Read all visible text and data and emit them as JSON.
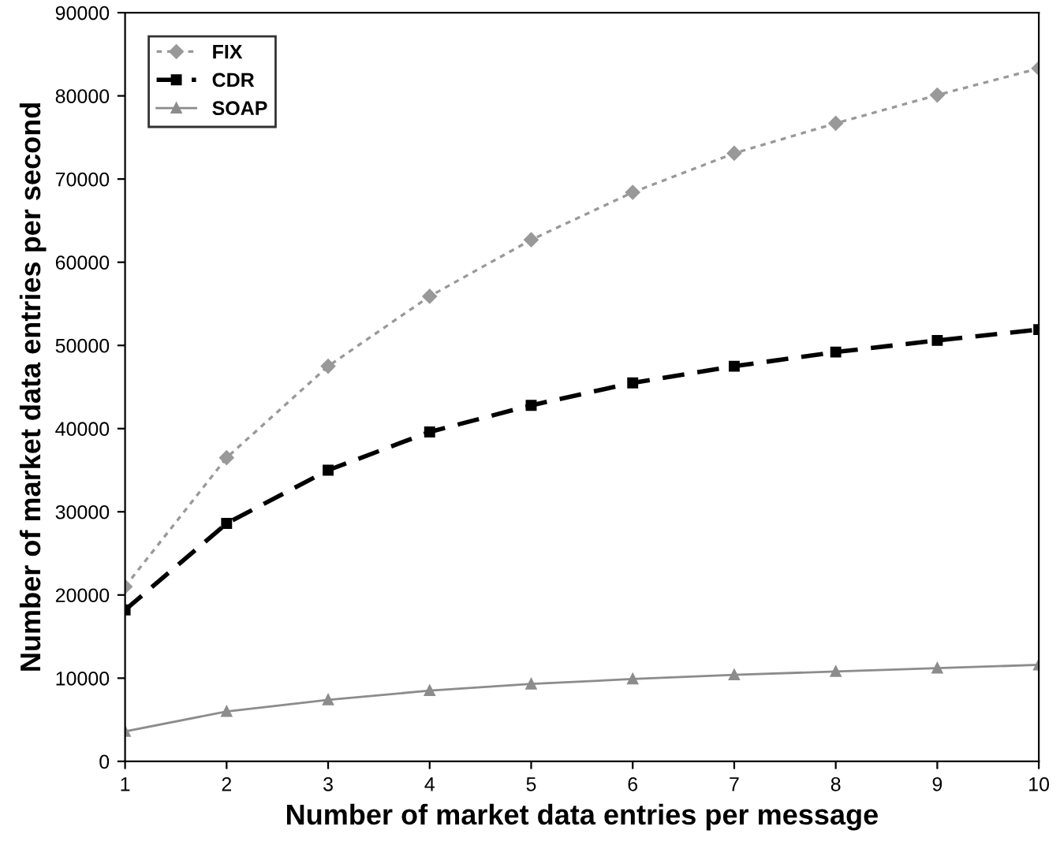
{
  "chart_data": {
    "type": "line",
    "xlabel": "Number of market data entries per message",
    "ylabel": "Number of market data entries per second",
    "x": [
      1,
      2,
      3,
      4,
      5,
      6,
      7,
      8,
      9,
      10
    ],
    "xlim": [
      1,
      10
    ],
    "xticks": [
      1,
      2,
      3,
      4,
      5,
      6,
      7,
      8,
      9,
      10
    ],
    "ylim": [
      0,
      90000
    ],
    "yticks": [
      0,
      10000,
      20000,
      30000,
      40000,
      50000,
      60000,
      70000,
      80000,
      90000
    ],
    "grid": false,
    "legend": "top left",
    "series": [
      {
        "name": "FIX",
        "color": "#999999",
        "line_style": "dotted",
        "marker": "diamond",
        "values": [
          21000,
          36500,
          47500,
          55900,
          62700,
          68400,
          73100,
          76700,
          80100,
          83300
        ]
      },
      {
        "name": "CDR",
        "color": "#000000",
        "line_style": "dashed",
        "marker": "square",
        "values": [
          18200,
          28600,
          35000,
          39600,
          42800,
          45500,
          47500,
          49200,
          50600,
          51900
        ]
      },
      {
        "name": "SOAP",
        "color": "#8c8c8c",
        "line_style": "solid",
        "marker": "triangle",
        "values": [
          3600,
          6000,
          7400,
          8500,
          9300,
          9900,
          10400,
          10800,
          11200,
          11600
        ]
      }
    ]
  }
}
